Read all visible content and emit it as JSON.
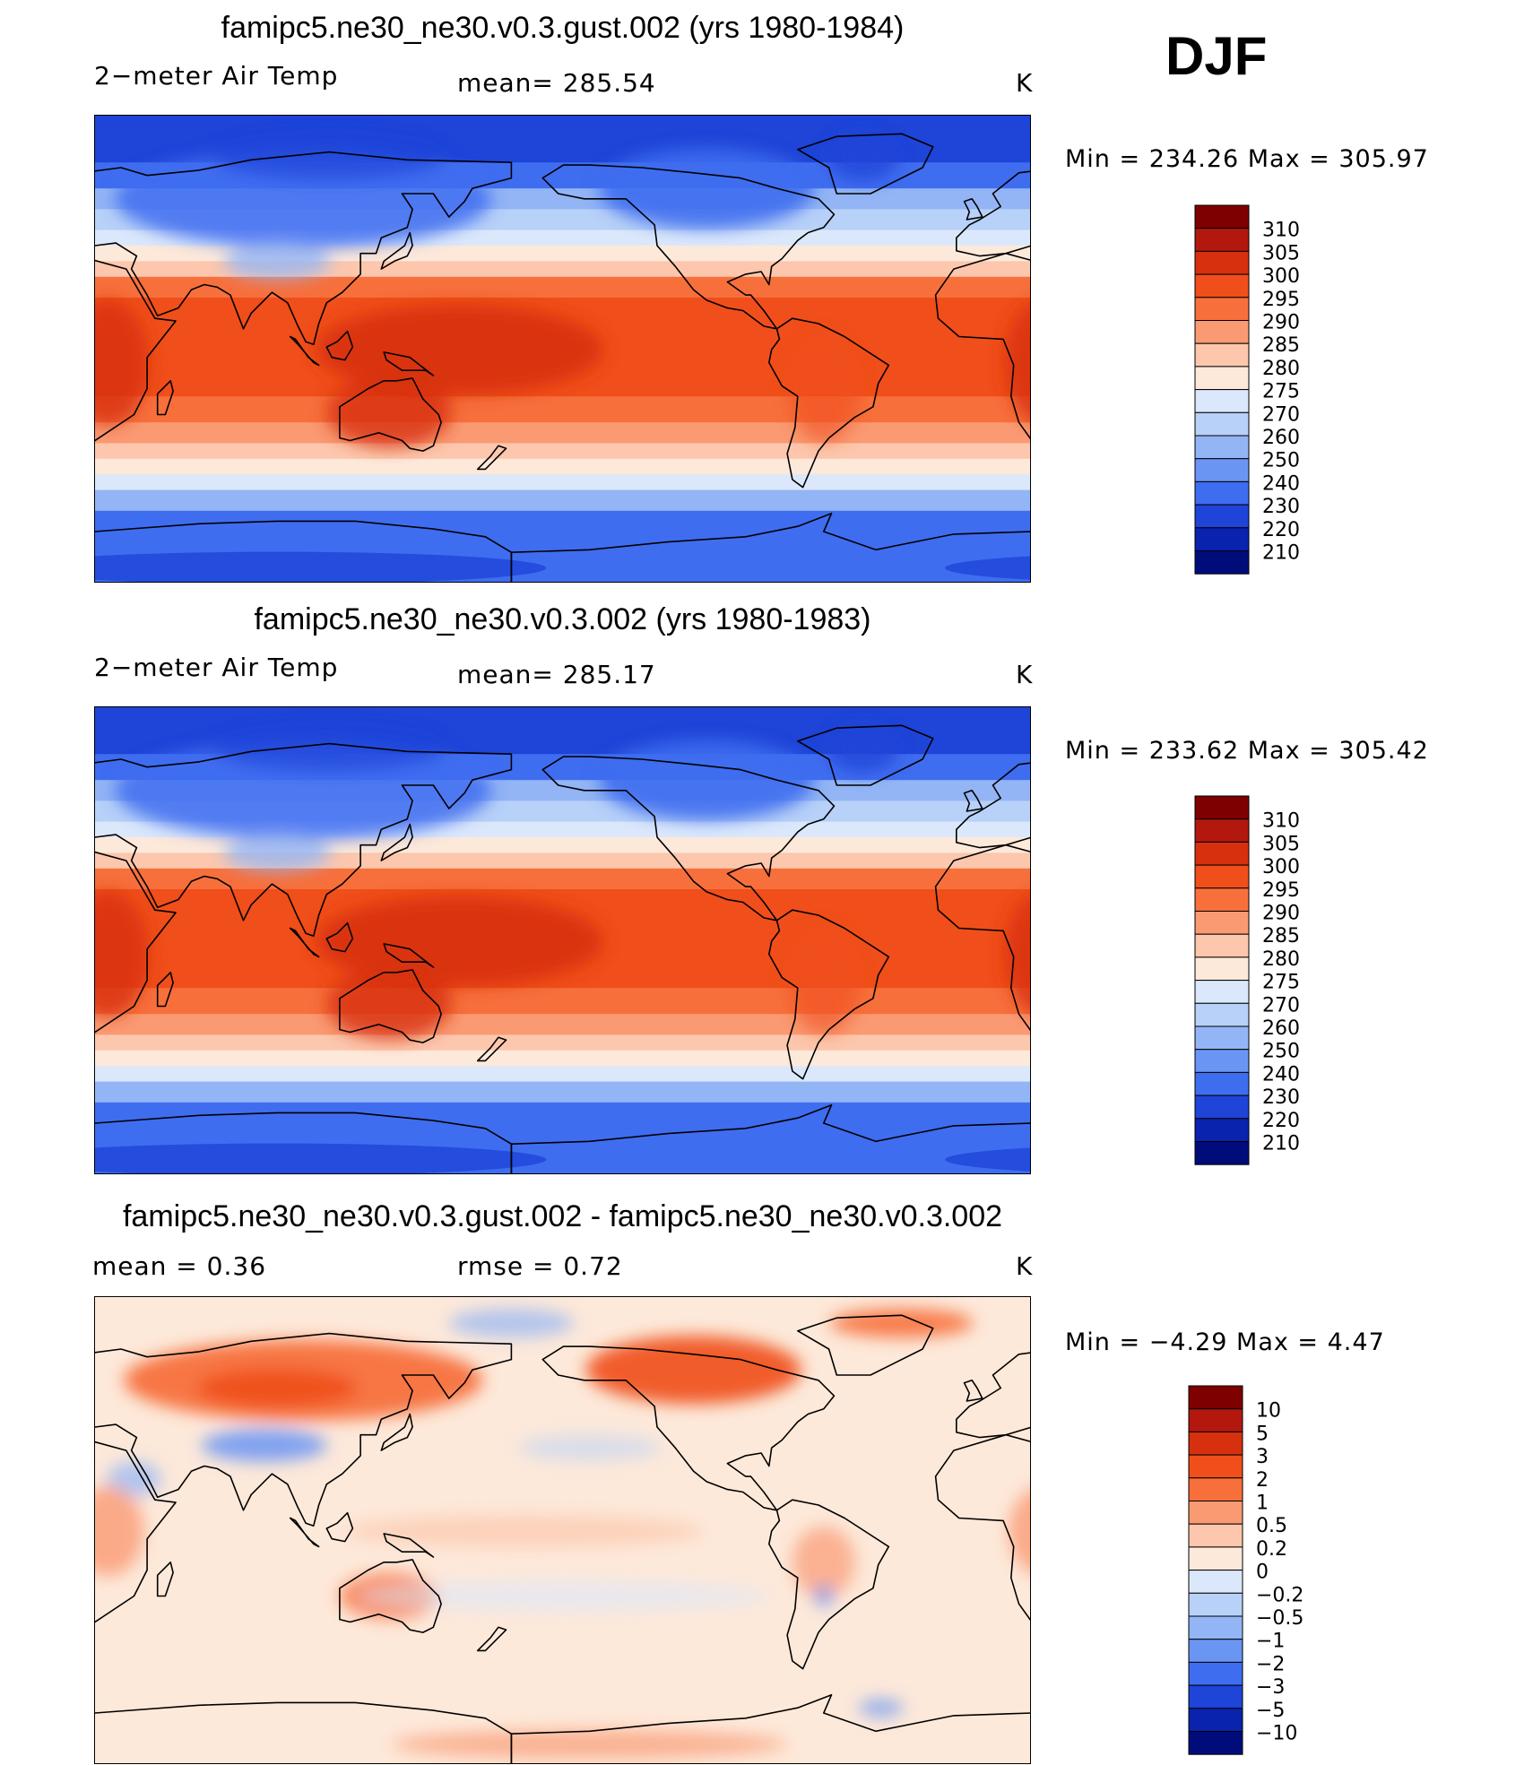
{
  "season": "DJF",
  "panels": [
    {
      "title": "famipc5.ne30_ne30.v0.3.gust.002 (yrs 1980-1984)",
      "left_label": "2−meter Air Temp",
      "center_label": "mean=  285.54",
      "units": "K",
      "minmax": "Min  =  234.26  Max  =  305.97",
      "kind": "abs",
      "polar_scale": 1.0
    },
    {
      "title": "famipc5.ne30_ne30.v0.3.002 (yrs 1980-1983)",
      "left_label": "2−meter Air Temp",
      "center_label": "mean=  285.17",
      "units": "K",
      "minmax": "Min  =  233.62  Max  =  305.42",
      "kind": "abs",
      "polar_scale": 0.95
    },
    {
      "title": "famipc5.ne30_ne30.v0.3.gust.002 - famipc5.ne30_ne30.v0.3.002",
      "left_label": "mean  =      0.36",
      "center_label": "rmse  =      0.72",
      "units": "K",
      "minmax": "Min  =     −4.29  Max  =       4.47",
      "kind": "diff",
      "polar_scale": 1.0
    }
  ],
  "colorbars": {
    "abs": {
      "labels": [
        "310",
        "305",
        "300",
        "295",
        "290",
        "285",
        "280",
        "275",
        "270",
        "260",
        "250",
        "240",
        "230",
        "220",
        "210"
      ],
      "colors": [
        "#7f0000",
        "#b2180e",
        "#d7300f",
        "#f04e1a",
        "#f7703c",
        "#fa9a73",
        "#fcc7ad",
        "#fde9da",
        "#dbe8fb",
        "#b8d1f8",
        "#93b5f5",
        "#6a95f3",
        "#3f6df0",
        "#1e44d8",
        "#0a23ae",
        "#000c7a"
      ]
    },
    "diff": {
      "labels": [
        "10",
        "5",
        "3",
        "2",
        "1",
        "0.5",
        "0.2",
        "0",
        "−0.2",
        "−0.5",
        "−1",
        "−2",
        "−3",
        "−5",
        "−10"
      ],
      "colors": [
        "#7f0000",
        "#b2180e",
        "#d7300f",
        "#f04e1a",
        "#f7703c",
        "#fa9a73",
        "#fcc7ad",
        "#fde9da",
        "#dbe8fb",
        "#b8d1f8",
        "#93b5f5",
        "#6a95f3",
        "#3f6df0",
        "#1e44d8",
        "#0a23ae",
        "#000c7a"
      ]
    }
  },
  "chart_data": [
    {
      "type": "heatmap",
      "title": "famipc5.ne30_ne30.v0.3.gust.002 (yrs 1980-1984)",
      "variable": "2−meter Air Temp",
      "units": "K",
      "mean": 285.54,
      "min": 234.26,
      "max": 305.97,
      "levels": [
        210,
        220,
        230,
        240,
        250,
        260,
        270,
        275,
        280,
        285,
        290,
        295,
        300,
        305,
        310
      ]
    },
    {
      "type": "heatmap",
      "title": "famipc5.ne30_ne30.v0.3.002 (yrs 1980-1983)",
      "variable": "2−meter Air Temp",
      "units": "K",
      "mean": 285.17,
      "min": 233.62,
      "max": 305.42,
      "levels": [
        210,
        220,
        230,
        240,
        250,
        260,
        270,
        275,
        280,
        285,
        290,
        295,
        300,
        305,
        310
      ]
    },
    {
      "type": "heatmap",
      "title": "famipc5.ne30_ne30.v0.3.gust.002 - famipc5.ne30_ne30.v0.3.002",
      "units": "K",
      "mean": 0.36,
      "rmse": 0.72,
      "min": -4.29,
      "max": 4.47,
      "levels": [
        -10,
        -5,
        -3,
        -2,
        -1,
        -0.5,
        -0.2,
        0,
        0.2,
        0.5,
        1,
        2,
        3,
        5,
        10
      ]
    }
  ]
}
